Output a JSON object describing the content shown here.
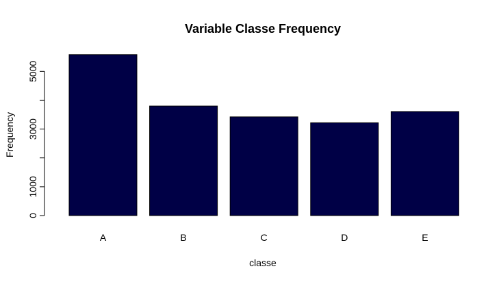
{
  "chart_data": {
    "type": "bar",
    "title": "Variable Classe Frequency",
    "xlabel": "classe",
    "ylabel": "Frequency",
    "categories": [
      "A",
      "B",
      "C",
      "D",
      "E"
    ],
    "values": [
      5580,
      3797,
      3422,
      3216,
      3607
    ],
    "ylim": [
      0,
      5700
    ],
    "yticks": [
      0,
      1000,
      3000,
      5000
    ],
    "ytick_labels": [
      "0",
      "1000",
      "3000",
      "5000"
    ],
    "yminor_ticks": [
      2000,
      4000
    ],
    "bar_color": "#000046",
    "grid": false,
    "legend": "none"
  }
}
